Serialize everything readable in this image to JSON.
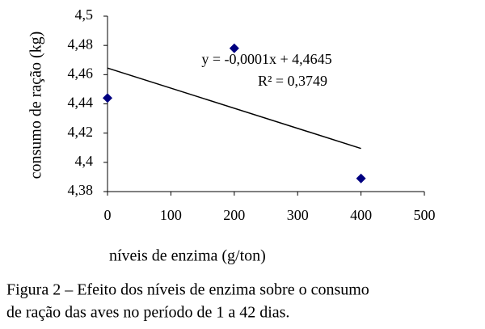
{
  "chart_data": {
    "type": "scatter",
    "x_label": "níveis de enzima (g/ton)",
    "y_label": "consumo de ração (kg)",
    "x": [
      0,
      200,
      400
    ],
    "series": [
      {
        "color": "#000080",
        "values": [
          4.444,
          4.478,
          4.389
        ]
      }
    ],
    "trendline": {
      "x": [
        0,
        400
      ],
      "y": [
        4.4645,
        4.4095
      ],
      "color": "#000000"
    },
    "annotations": [
      "y = -0,0001x + 4,4645",
      "R² = 0,3749"
    ],
    "xlim": [
      0,
      500
    ],
    "xticks": [
      0,
      100,
      200,
      300,
      400,
      500
    ],
    "ylim": [
      4.38,
      4.5
    ],
    "yticks": [
      {
        "value": 4.38,
        "label": "4,38"
      },
      {
        "value": 4.4,
        "label": "4,4"
      },
      {
        "value": 4.42,
        "label": "4,42"
      },
      {
        "value": 4.44,
        "label": "4,44"
      },
      {
        "value": 4.46,
        "label": "4,46"
      },
      {
        "value": 4.48,
        "label": "4,48"
      },
      {
        "value": 4.5,
        "label": "4,5"
      }
    ],
    "grid": false,
    "caption": [
      "Figura 2 – Efeito dos níveis de enzima sobre o consumo",
      "de ração das aves no período de 1 a 42 dias."
    ]
  }
}
